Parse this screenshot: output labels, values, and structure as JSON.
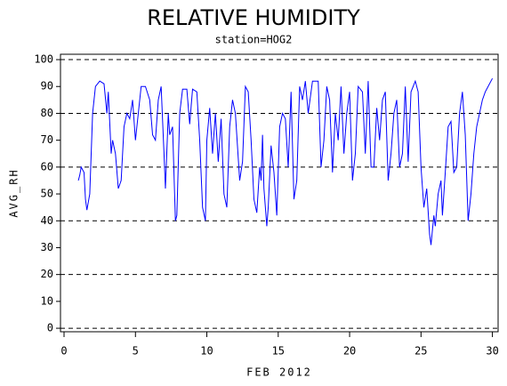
{
  "chart_data": {
    "type": "line",
    "title": "RELATIVE HUMIDITY",
    "subtitle": "station=HOG2",
    "y_label": "AVG_RH",
    "x_label": "FEB 2012",
    "xlim": [
      -0.25,
      30.4
    ],
    "ylim": [
      -1.3,
      102
    ],
    "xticks": [
      0,
      5,
      10,
      15,
      20,
      25,
      30
    ],
    "yticks": [
      0,
      10,
      20,
      30,
      40,
      50,
      60,
      70,
      80,
      90,
      100
    ],
    "ygrid": [
      0,
      20,
      40,
      60,
      80,
      100
    ],
    "series": [
      {
        "name": "AVG_RH",
        "color": "#0000ff",
        "x": [
          1.0,
          1.1,
          1.2,
          1.4,
          1.5,
          1.6,
          1.8,
          2.0,
          2.2,
          2.5,
          2.8,
          3.0,
          3.1,
          3.3,
          3.4,
          3.6,
          3.8,
          4.0,
          4.2,
          4.4,
          4.6,
          4.8,
          5.0,
          5.2,
          5.4,
          5.7,
          6.0,
          6.2,
          6.4,
          6.6,
          6.8,
          7.0,
          7.1,
          7.3,
          7.4,
          7.6,
          7.8,
          7.9,
          8.1,
          8.3,
          8.6,
          8.8,
          9.0,
          9.3,
          9.5,
          9.7,
          9.9,
          10.0,
          10.2,
          10.4,
          10.6,
          10.8,
          11.0,
          11.2,
          11.4,
          11.6,
          11.8,
          12.0,
          12.3,
          12.5,
          12.7,
          12.9,
          13.1,
          13.3,
          13.5,
          13.7,
          13.8,
          13.9,
          14.0,
          14.2,
          14.3,
          14.5,
          14.7,
          14.9,
          15.1,
          15.3,
          15.5,
          15.7,
          15.9,
          16.1,
          16.3,
          16.5,
          16.7,
          16.9,
          17.1,
          17.4,
          17.8,
          18.0,
          18.2,
          18.4,
          18.6,
          18.8,
          19.0,
          19.2,
          19.4,
          19.6,
          19.8,
          20.0,
          20.2,
          20.4,
          20.6,
          20.9,
          21.1,
          21.3,
          21.5,
          21.7,
          21.9,
          22.1,
          22.3,
          22.5,
          22.7,
          22.9,
          23.1,
          23.3,
          23.5,
          23.7,
          23.9,
          24.1,
          24.3,
          24.6,
          24.8,
          25.0,
          25.2,
          25.4,
          25.6,
          25.7,
          25.9,
          26.0,
          26.2,
          26.4,
          26.5,
          26.7,
          26.9,
          27.1,
          27.3,
          27.5,
          27.7,
          27.9,
          28.1,
          28.3,
          28.5,
          28.7,
          28.9,
          29.1,
          29.3,
          29.5,
          29.7,
          29.9,
          30.0
        ],
        "values": [
          55,
          57,
          60,
          58,
          48,
          44,
          50,
          80,
          90,
          92,
          91,
          80,
          88,
          65,
          70,
          65,
          52,
          55,
          75,
          80,
          78,
          85,
          70,
          80,
          90,
          90,
          85,
          72,
          70,
          85,
          90,
          65,
          52,
          80,
          72,
          75,
          40,
          42,
          80,
          89,
          89,
          76,
          89,
          88,
          70,
          45,
          40,
          70,
          82,
          65,
          80,
          62,
          78,
          50,
          45,
          75,
          85,
          80,
          55,
          62,
          90,
          88,
          70,
          48,
          43,
          60,
          55,
          72,
          52,
          38,
          45,
          68,
          58,
          42,
          75,
          80,
          78,
          60,
          88,
          48,
          55,
          90,
          85,
          92,
          80,
          92,
          92,
          60,
          70,
          90,
          85,
          58,
          80,
          70,
          90,
          65,
          80,
          88,
          55,
          65,
          90,
          88,
          65,
          92,
          60,
          60,
          82,
          70,
          85,
          88,
          55,
          65,
          80,
          85,
          60,
          65,
          90,
          62,
          88,
          92,
          88,
          60,
          45,
          52,
          35,
          31,
          42,
          38,
          50,
          55,
          42,
          58,
          75,
          77,
          58,
          60,
          80,
          88,
          72,
          40,
          50,
          65,
          75,
          80,
          85,
          88,
          90,
          92,
          93
        ]
      }
    ]
  }
}
